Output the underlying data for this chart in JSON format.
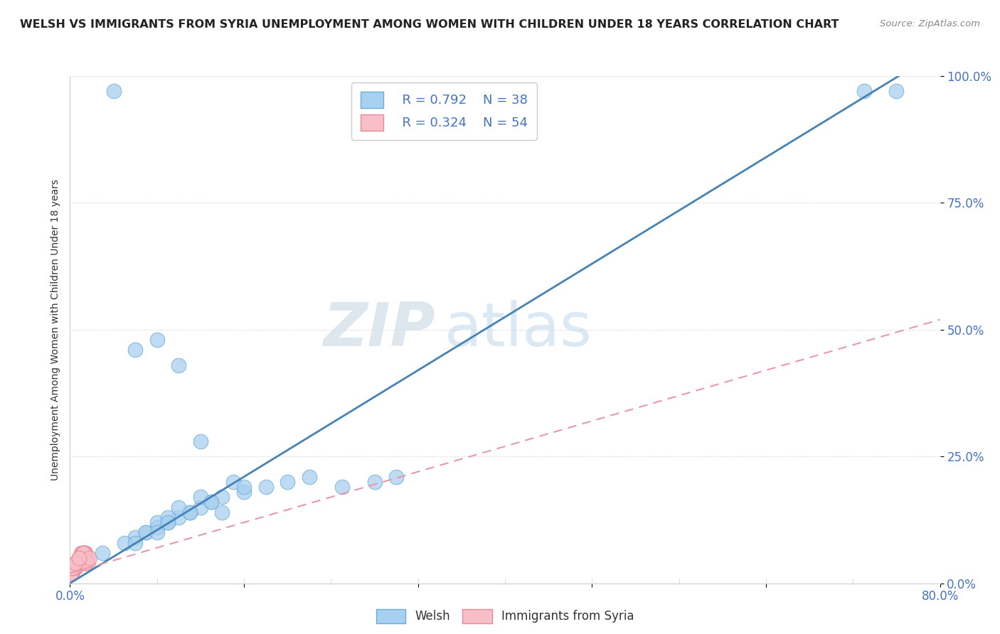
{
  "title": "WELSH VS IMMIGRANTS FROM SYRIA UNEMPLOYMENT AMONG WOMEN WITH CHILDREN UNDER 18 YEARS CORRELATION CHART",
  "source": "Source: ZipAtlas.com",
  "ylabel": "Unemployment Among Women with Children Under 18 years",
  "xlim": [
    0.0,
    0.8
  ],
  "ylim": [
    0.0,
    1.0
  ],
  "xticks": [
    0.0,
    0.16,
    0.32,
    0.48,
    0.64,
    0.8
  ],
  "xtick_labels": [
    "0.0%",
    "",
    "",
    "",
    "",
    "80.0%"
  ],
  "ytick_labels": [
    "0.0%",
    "25.0%",
    "50.0%",
    "75.0%",
    "100.0%"
  ],
  "yticks": [
    0.0,
    0.25,
    0.5,
    0.75,
    1.0
  ],
  "welsh_color": "#a8d0f0",
  "syria_color": "#f9bfc9",
  "welsh_edge": "#6aadd5",
  "syria_edge": "#e88898",
  "blue_line_color": "#4682b4",
  "pink_line_color": "#e899a8",
  "legend_R1": "R = 0.792",
  "legend_N1": "N = 38",
  "legend_R2": "R = 0.324",
  "legend_N2": "N = 54",
  "watermark_zip": "ZIP",
  "watermark_atlas": "atlas",
  "background_color": "#ffffff",
  "welsh_x": [
    0.03,
    0.1,
    0.12,
    0.14,
    0.08,
    0.06,
    0.09,
    0.11,
    0.07,
    0.05,
    0.13,
    0.1,
    0.08,
    0.12,
    0.15,
    0.09,
    0.16,
    0.18,
    0.2,
    0.22,
    0.25,
    0.28,
    0.3,
    0.06,
    0.08,
    0.1,
    0.12,
    0.14,
    0.16,
    0.04,
    0.07,
    0.09,
    0.11,
    0.13,
    0.73,
    0.76,
    0.06,
    0.08
  ],
  "welsh_y": [
    0.06,
    0.13,
    0.15,
    0.14,
    0.11,
    0.09,
    0.12,
    0.14,
    0.1,
    0.08,
    0.16,
    0.15,
    0.12,
    0.17,
    0.2,
    0.13,
    0.18,
    0.19,
    0.2,
    0.21,
    0.19,
    0.2,
    0.21,
    0.46,
    0.48,
    0.43,
    0.28,
    0.17,
    0.19,
    0.97,
    0.1,
    0.12,
    0.14,
    0.16,
    0.97,
    0.97,
    0.08,
    0.1
  ],
  "syria_x": [
    0.005,
    0.008,
    0.01,
    0.012,
    0.015,
    0.003,
    0.006,
    0.009,
    0.011,
    0.013,
    0.016,
    0.004,
    0.007,
    0.01,
    0.012,
    0.002,
    0.005,
    0.008,
    0.011,
    0.014,
    0.003,
    0.006,
    0.009,
    0.012,
    0.015,
    0.004,
    0.007,
    0.01,
    0.013,
    0.002,
    0.005,
    0.008,
    0.011,
    0.014,
    0.017,
    0.003,
    0.006,
    0.009,
    0.012,
    0.015,
    0.004,
    0.007,
    0.01,
    0.013,
    0.001,
    0.003,
    0.006,
    0.009,
    0.012,
    0.015,
    0.018,
    0.002,
    0.005,
    0.008
  ],
  "syria_y": [
    0.04,
    0.05,
    0.06,
    0.04,
    0.05,
    0.03,
    0.04,
    0.05,
    0.06,
    0.04,
    0.05,
    0.03,
    0.04,
    0.05,
    0.06,
    0.02,
    0.03,
    0.04,
    0.05,
    0.06,
    0.03,
    0.04,
    0.05,
    0.06,
    0.04,
    0.03,
    0.04,
    0.05,
    0.06,
    0.02,
    0.03,
    0.04,
    0.05,
    0.06,
    0.04,
    0.03,
    0.04,
    0.05,
    0.06,
    0.04,
    0.03,
    0.04,
    0.05,
    0.06,
    0.02,
    0.03,
    0.04,
    0.05,
    0.06,
    0.04,
    0.05,
    0.03,
    0.04,
    0.05
  ],
  "blue_line_x": [
    0.0,
    0.8
  ],
  "blue_line_y": [
    0.0,
    1.05
  ],
  "pink_line_x": [
    0.0,
    0.8
  ],
  "pink_line_y": [
    0.02,
    0.52
  ]
}
